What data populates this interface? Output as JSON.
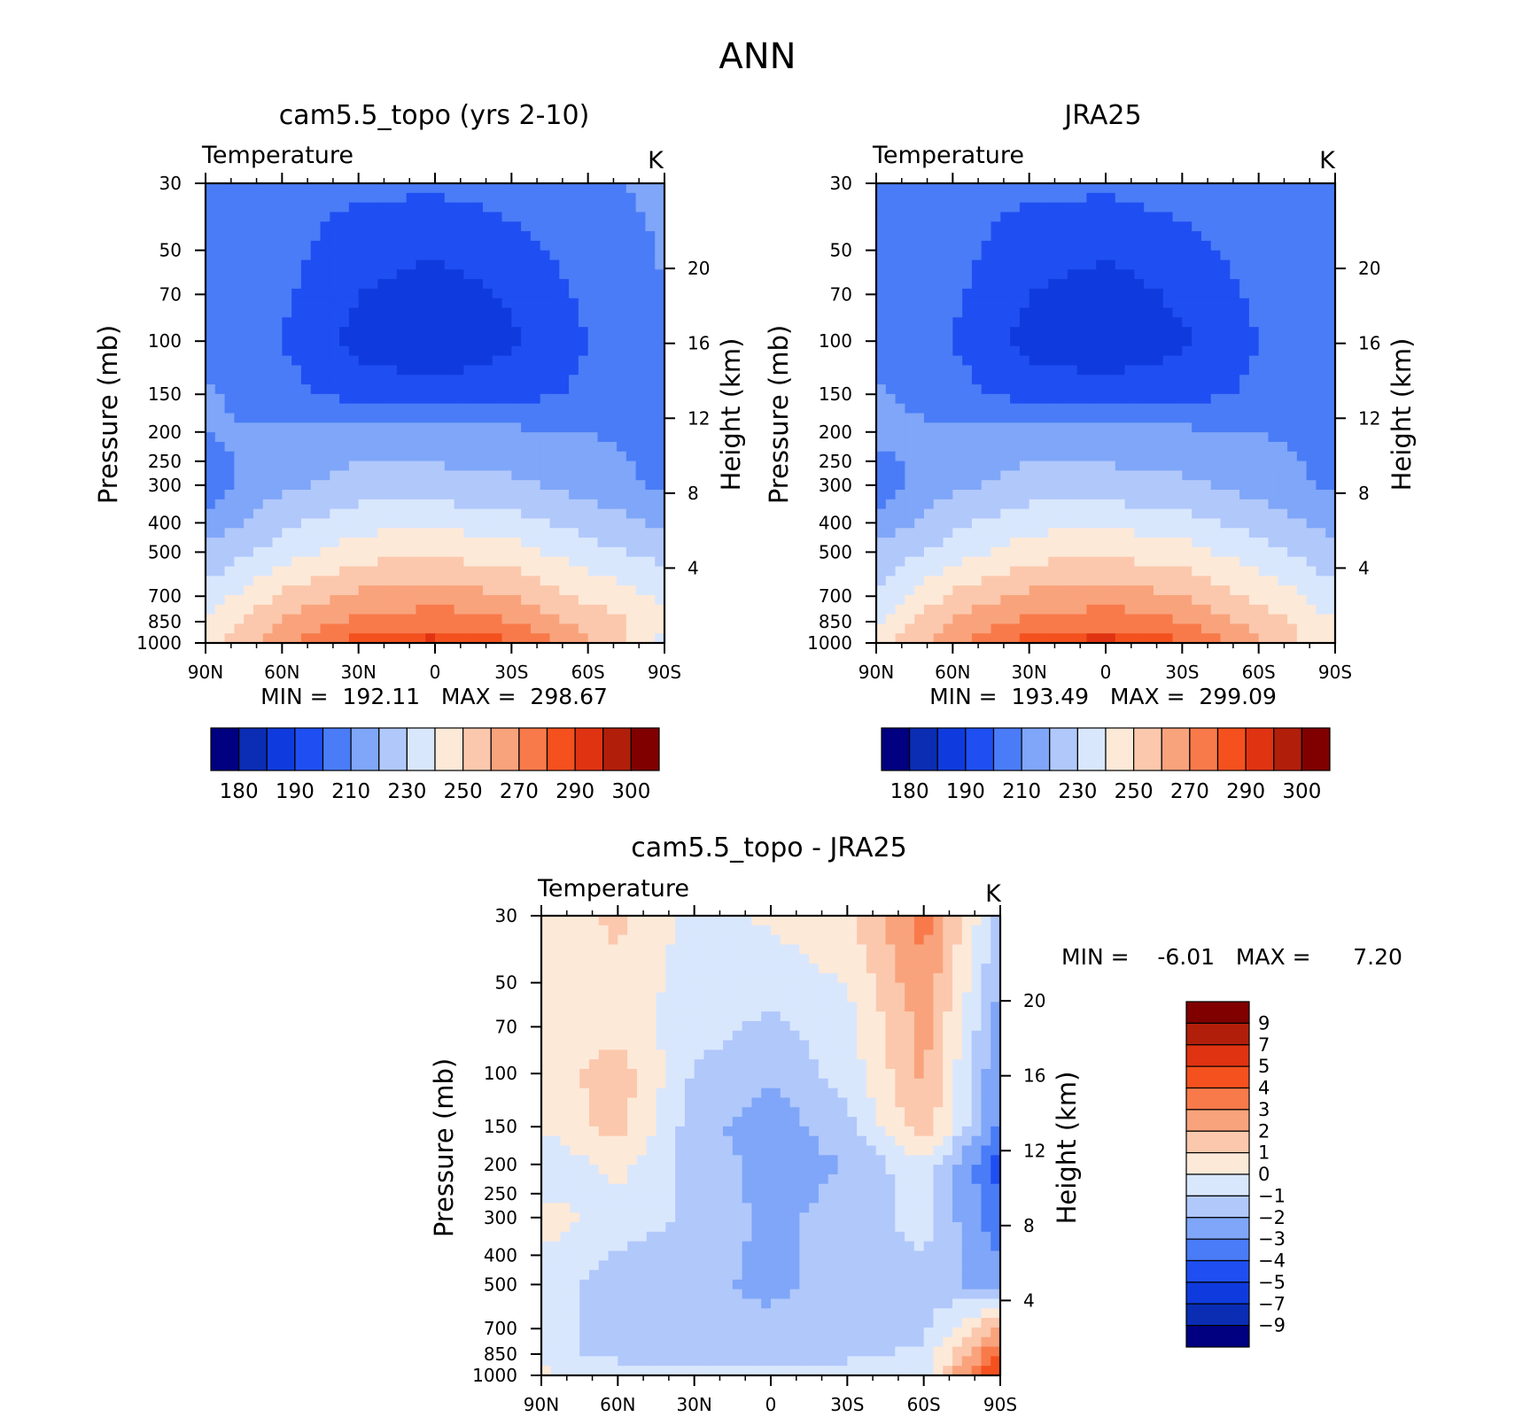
{
  "page_title": "ANN",
  "colors": {
    "abs_levels": [
      "#000080",
      "#0a2db4",
      "#0f3bde",
      "#1f4ff2",
      "#4a7cf7",
      "#7fa6f8",
      "#b1c8fb",
      "#d9e7fd",
      "#fde9d8",
      "#fbc8ad",
      "#f9a37c",
      "#f87a4b",
      "#f4511e",
      "#e03312",
      "#b11f0b",
      "#800000"
    ],
    "diff_levels": [
      "#000080",
      "#0a2db4",
      "#0f3bde",
      "#1f4ff2",
      "#4a7cf7",
      "#7fa6f8",
      "#b1c8fb",
      "#d9e7fd",
      "#fde9d8",
      "#fbc8ad",
      "#f9a37c",
      "#f87a4b",
      "#f4511e",
      "#e03312",
      "#b11f0b",
      "#800000"
    ]
  },
  "chart_data": [
    {
      "type": "heatmap",
      "title": "cam5.5_topo (yrs 2-10)",
      "subtitle_left": "Temperature",
      "units": "K",
      "ylabel": "Pressure (mb)",
      "ylabel_right": "Height (km)",
      "x_ticks": [
        "90N",
        "60N",
        "30N",
        "0",
        "30S",
        "60S",
        "90S"
      ],
      "y_ticks": [
        "30",
        "50",
        "70",
        "100",
        "150",
        "200",
        "250",
        "300",
        "400",
        "500",
        "700",
        "850",
        "1000"
      ],
      "y_ticks_right": [
        "20",
        "16",
        "12",
        "8",
        "4"
      ],
      "ylim": [
        1000,
        30
      ],
      "min_text": "MIN =  192.11   MAX =  298.67",
      "colorbar_labels": [
        "180",
        "190",
        "210",
        "230",
        "250",
        "270",
        "290",
        "300"
      ],
      "field": {
        "lat": [
          90,
          60,
          30,
          0,
          -30,
          -60,
          -90
        ],
        "p": [
          30,
          70,
          100,
          150,
          200,
          300,
          500,
          700,
          850,
          1000
        ],
        "values": [
          [
            218,
            214,
            212,
            212,
            214,
            218,
            222
          ],
          [
            215,
            212,
            200,
            194,
            202,
            212,
            220
          ],
          [
            216,
            210,
            196,
            192,
            198,
            210,
            218
          ],
          [
            222,
            214,
            206,
            204,
            206,
            212,
            218
          ],
          [
            220,
            222,
            224,
            224,
            222,
            220,
            216
          ],
          [
            214,
            228,
            234,
            234,
            232,
            226,
            218
          ],
          [
            232,
            244,
            256,
            258,
            254,
            244,
            236
          ],
          [
            244,
            262,
            272,
            276,
            270,
            258,
            248
          ],
          [
            250,
            272,
            282,
            286,
            280,
            266,
            256
          ],
          [
            258,
            276,
            294,
            298,
            292,
            272,
            246
          ]
        ]
      }
    },
    {
      "type": "heatmap",
      "title": "JRA25",
      "subtitle_left": "Temperature",
      "units": "K",
      "ylabel": "Pressure (mb)",
      "ylabel_right": "Height (km)",
      "x_ticks": [
        "90N",
        "60N",
        "30N",
        "0",
        "30S",
        "60S",
        "90S"
      ],
      "y_ticks": [
        "30",
        "50",
        "70",
        "100",
        "150",
        "200",
        "250",
        "300",
        "400",
        "500",
        "700",
        "850",
        "1000"
      ],
      "y_ticks_right": [
        "20",
        "16",
        "12",
        "8",
        "4"
      ],
      "ylim": [
        1000,
        30
      ],
      "min_text": "MIN =  193.49   MAX =  299.09",
      "colorbar_labels": [
        "180",
        "190",
        "210",
        "230",
        "250",
        "270",
        "290",
        "300"
      ],
      "field": {
        "lat": [
          90,
          60,
          30,
          0,
          -30,
          -60,
          -90
        ],
        "p": [
          30,
          70,
          100,
          150,
          200,
          300,
          500,
          700,
          850,
          1000
        ],
        "values": [
          [
            218,
            214,
            212,
            212,
            214,
            216,
            214
          ],
          [
            215,
            212,
            200,
            195,
            202,
            212,
            216
          ],
          [
            216,
            210,
            196,
            193,
            198,
            210,
            214
          ],
          [
            222,
            214,
            206,
            204,
            206,
            212,
            216
          ],
          [
            222,
            222,
            224,
            224,
            222,
            220,
            216
          ],
          [
            214,
            228,
            234,
            234,
            232,
            226,
            218
          ],
          [
            232,
            244,
            256,
            258,
            254,
            244,
            232
          ],
          [
            242,
            262,
            272,
            276,
            270,
            258,
            244
          ],
          [
            248,
            272,
            282,
            286,
            280,
            266,
            250
          ],
          [
            256,
            276,
            294,
            299,
            292,
            272,
            250
          ]
        ]
      }
    },
    {
      "type": "heatmap",
      "title": "cam5.5_topo - JRA25",
      "subtitle_left": "Temperature",
      "units": "K",
      "ylabel": "Pressure (mb)",
      "ylabel_right": "Height (km)",
      "x_ticks": [
        "90N",
        "60N",
        "30N",
        "0",
        "30S",
        "60S",
        "90S"
      ],
      "y_ticks": [
        "30",
        "50",
        "70",
        "100",
        "150",
        "200",
        "250",
        "300",
        "400",
        "500",
        "700",
        "850",
        "1000"
      ],
      "y_ticks_right": [
        "20",
        "16",
        "12",
        "8",
        "4"
      ],
      "ylim": [
        1000,
        30
      ],
      "min_text": "MIN =    -6.01   MAX =      7.20",
      "colorbar_labels": [
        "9",
        "7",
        "5",
        "4",
        "3",
        "2",
        "1",
        "0",
        "-1",
        "-2",
        "-3",
        "-4",
        "-5",
        "-7",
        "-9"
      ],
      "field": {
        "lat": [
          90,
          60,
          30,
          0,
          -30,
          -60,
          -90
        ],
        "p": [
          30,
          70,
          100,
          150,
          200,
          300,
          500,
          700,
          850,
          1000
        ],
        "values": [
          [
            0.3,
            1.2,
            -0.4,
            0.2,
            0.8,
            3.5,
            -1.5
          ],
          [
            0.4,
            0.5,
            -0.6,
            -1.2,
            -0.4,
            2.4,
            -2.5
          ],
          [
            0.3,
            1.6,
            -1.1,
            -1.8,
            -0.6,
            2.2,
            -3.0
          ],
          [
            0.2,
            1.4,
            -1.6,
            -2.6,
            -1.4,
            1.8,
            -3.2
          ],
          [
            -1.0,
            0.3,
            -1.4,
            -2.4,
            -2.0,
            -0.2,
            -4.5
          ],
          [
            0.4,
            -0.4,
            -1.2,
            -2.3,
            -1.6,
            -0.6,
            -3.8
          ],
          [
            -0.4,
            -1.6,
            -1.8,
            -2.2,
            -1.6,
            -1.4,
            -2.6
          ],
          [
            -0.6,
            -1.4,
            -1.6,
            -1.8,
            -1.4,
            -1.2,
            2.2
          ],
          [
            -0.8,
            -1.2,
            -1.4,
            -1.6,
            -1.2,
            -0.8,
            4.2
          ],
          [
            0.4,
            -0.6,
            -0.4,
            -0.4,
            -0.6,
            -0.4,
            5.5
          ]
        ]
      }
    }
  ]
}
